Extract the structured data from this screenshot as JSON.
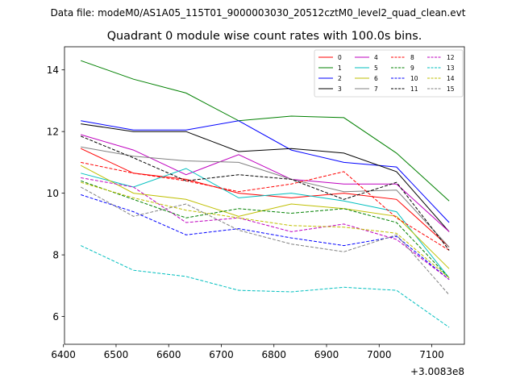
{
  "figure": {
    "suptitle": "Data file: modeM0/AS1A05_115T01_9000003030_20512cztM0_level2_quad_clean.evt"
  },
  "chart_data": {
    "type": "line",
    "title": "Quadrant 0 module wise count rates with 100.0s bins.",
    "xlabel": "",
    "ylabel": "",
    "x_offset_label": "+3.0083e8",
    "xlim": [
      6402,
      7162
    ],
    "ylim": [
      5.1,
      14.75
    ],
    "xticks": [
      6400,
      6500,
      6600,
      6700,
      6800,
      6900,
      7000,
      7100
    ],
    "yticks": [
      6,
      8,
      10,
      12,
      14
    ],
    "grid": false,
    "legend_position": "top-right",
    "legend_columns": 4,
    "x": [
      6433,
      6533,
      6633,
      6733,
      6833,
      6933,
      7033,
      7133
    ],
    "series": [
      {
        "name": "0",
        "color": "#ff0000",
        "dash": "solid",
        "values": [
          11.45,
          10.65,
          10.45,
          10.0,
          9.85,
          10.0,
          9.8,
          8.25
        ]
      },
      {
        "name": "1",
        "color": "#008000",
        "dash": "solid",
        "values": [
          14.3,
          13.7,
          13.25,
          12.35,
          12.5,
          12.45,
          11.3,
          9.75
        ]
      },
      {
        "name": "2",
        "color": "#0000ff",
        "dash": "solid",
        "values": [
          12.35,
          12.05,
          12.05,
          12.35,
          11.4,
          11.0,
          10.85,
          9.05
        ]
      },
      {
        "name": "3",
        "color": "#000000",
        "dash": "solid",
        "values": [
          12.25,
          12.0,
          12.0,
          11.35,
          11.45,
          11.3,
          10.7,
          8.75
        ]
      },
      {
        "name": "4",
        "color": "#bf00bf",
        "dash": "solid",
        "values": [
          11.9,
          11.4,
          10.6,
          11.25,
          10.45,
          10.3,
          10.3,
          8.75
        ]
      },
      {
        "name": "5",
        "color": "#00bfbf",
        "dash": "solid",
        "values": [
          10.65,
          10.2,
          10.8,
          9.85,
          10.0,
          9.75,
          9.4,
          7.25
        ]
      },
      {
        "name": "6",
        "color": "#bfbf00",
        "dash": "solid",
        "values": [
          10.9,
          10.0,
          9.8,
          9.25,
          9.65,
          9.5,
          9.25,
          7.55
        ]
      },
      {
        "name": "7",
        "color": "#808080",
        "dash": "solid",
        "values": [
          11.5,
          11.2,
          11.05,
          11.0,
          10.45,
          10.05,
          10.1,
          8.25
        ]
      },
      {
        "name": "8",
        "color": "#ff0000",
        "dash": "dashed",
        "values": [
          11.0,
          10.65,
          10.4,
          10.05,
          10.3,
          10.7,
          9.2,
          8.15
        ]
      },
      {
        "name": "9",
        "color": "#008000",
        "dash": "dashed",
        "values": [
          10.4,
          9.8,
          9.2,
          9.5,
          9.35,
          9.5,
          9.05,
          7.25
        ]
      },
      {
        "name": "10",
        "color": "#0000ff",
        "dash": "dashed",
        "values": [
          9.95,
          9.4,
          8.65,
          8.85,
          8.55,
          8.3,
          8.6,
          7.2
        ]
      },
      {
        "name": "11",
        "color": "#000000",
        "dash": "dashed",
        "values": [
          11.85,
          11.15,
          10.4,
          10.6,
          10.45,
          9.8,
          10.35,
          8.15
        ]
      },
      {
        "name": "12",
        "color": "#bf00bf",
        "dash": "dashed",
        "values": [
          10.5,
          10.2,
          9.05,
          9.2,
          8.75,
          9.0,
          8.5,
          7.2
        ]
      },
      {
        "name": "13",
        "color": "#00bfbf",
        "dash": "dashed",
        "values": [
          8.3,
          7.5,
          7.3,
          6.85,
          6.8,
          6.95,
          6.85,
          5.65
        ]
      },
      {
        "name": "14",
        "color": "#bfbf00",
        "dash": "dashed",
        "values": [
          10.35,
          9.85,
          9.45,
          9.2,
          8.95,
          8.9,
          8.7,
          7.25
        ]
      },
      {
        "name": "15",
        "color": "#808080",
        "dash": "dashed",
        "values": [
          10.2,
          9.25,
          9.65,
          8.8,
          8.35,
          8.1,
          8.65,
          6.7
        ]
      }
    ]
  }
}
